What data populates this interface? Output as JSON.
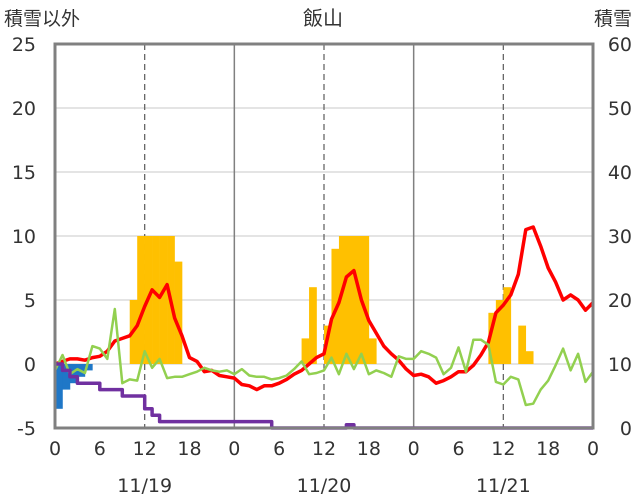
{
  "chart_data": {
    "type": "bar+line",
    "title": "飯山",
    "y_left_label": "積雪以外",
    "y_right_label": "積雪",
    "y_left_range": [
      -5,
      25
    ],
    "y_right_range": [
      0,
      60
    ],
    "y_left_ticks": [
      "25",
      "20",
      "15",
      "10",
      "5",
      "0",
      "-5"
    ],
    "y_right_ticks": [
      "60",
      "50",
      "40",
      "30",
      "20",
      "10",
      "0"
    ],
    "x_range_hours": [
      0,
      72
    ],
    "x_tick_labels": [
      "0",
      "6",
      "12",
      "18",
      "0",
      "6",
      "12",
      "18",
      "0",
      "6",
      "12",
      "18",
      "0"
    ],
    "date_labels": [
      "11/19",
      "11/20",
      "11/21"
    ],
    "grid": true,
    "series": [
      {
        "kind": "bar",
        "color": "#ffc000",
        "axis": "left",
        "points": [
          [
            10,
            5
          ],
          [
            11,
            10
          ],
          [
            12,
            10
          ],
          [
            13,
            10
          ],
          [
            14,
            10
          ],
          [
            15,
            10
          ],
          [
            16,
            8
          ],
          [
            33,
            2
          ],
          [
            34,
            6
          ],
          [
            36,
            3
          ],
          [
            37,
            9
          ],
          [
            38,
            10
          ],
          [
            39,
            10
          ],
          [
            40,
            10
          ],
          [
            41,
            10
          ],
          [
            42,
            2
          ],
          [
            58,
            4
          ],
          [
            59,
            5
          ],
          [
            60,
            6
          ],
          [
            62,
            3
          ],
          [
            63,
            1
          ]
        ]
      },
      {
        "kind": "bar",
        "color": "#1f77c7",
        "axis": "left",
        "points": [
          [
            0,
            -3.5
          ],
          [
            1,
            -2
          ],
          [
            2,
            -1.5
          ],
          [
            3,
            -1
          ],
          [
            4,
            -0.5
          ]
        ]
      },
      {
        "kind": "line",
        "color": "#ff0000",
        "axis": "left",
        "points": [
          [
            0,
            0
          ],
          [
            1,
            0.2
          ],
          [
            2,
            0.4
          ],
          [
            3,
            0.4
          ],
          [
            4,
            0.3
          ],
          [
            5,
            0.5
          ],
          [
            6,
            0.6
          ],
          [
            7,
            1
          ],
          [
            8,
            1.8
          ],
          [
            9,
            2
          ],
          [
            10,
            2.2
          ],
          [
            11,
            3
          ],
          [
            12,
            4.5
          ],
          [
            13,
            5.8
          ],
          [
            14,
            5.2
          ],
          [
            15,
            6.2
          ],
          [
            16,
            3.6
          ],
          [
            17,
            2.2
          ],
          [
            18,
            0.5
          ],
          [
            19,
            0.2
          ],
          [
            20,
            -0.6
          ],
          [
            21,
            -0.5
          ],
          [
            22,
            -0.9
          ],
          [
            23,
            -1
          ],
          [
            24,
            -1.1
          ],
          [
            25,
            -1.6
          ],
          [
            26,
            -1.7
          ],
          [
            27,
            -2
          ],
          [
            28,
            -1.7
          ],
          [
            29,
            -1.7
          ],
          [
            30,
            -1.5
          ],
          [
            31,
            -1.2
          ],
          [
            32,
            -0.8
          ],
          [
            33,
            -0.5
          ],
          [
            34,
            0
          ],
          [
            35,
            0.5
          ],
          [
            36,
            0.8
          ],
          [
            37,
            3.5
          ],
          [
            38,
            4.8
          ],
          [
            39,
            6.8
          ],
          [
            40,
            7.3
          ],
          [
            41,
            5
          ],
          [
            42,
            3.4
          ],
          [
            43,
            2.4
          ],
          [
            44,
            1.4
          ],
          [
            45,
            0.8
          ],
          [
            46,
            0.3
          ],
          [
            47,
            -0.4
          ],
          [
            48,
            -0.9
          ],
          [
            49,
            -0.8
          ],
          [
            50,
            -1
          ],
          [
            51,
            -1.5
          ],
          [
            52,
            -1.3
          ],
          [
            53,
            -1
          ],
          [
            54,
            -0.6
          ],
          [
            55,
            -0.6
          ],
          [
            56,
            -0.1
          ],
          [
            57,
            0.7
          ],
          [
            58,
            1.7
          ],
          [
            59,
            4
          ],
          [
            60,
            4.6
          ],
          [
            61,
            5.4
          ],
          [
            62,
            7
          ],
          [
            63,
            10.5
          ],
          [
            64,
            10.7
          ],
          [
            65,
            9.2
          ],
          [
            66,
            7.5
          ],
          [
            67,
            6.4
          ],
          [
            68,
            5
          ],
          [
            69,
            5.4
          ],
          [
            70,
            5
          ],
          [
            71,
            4.2
          ],
          [
            72,
            4.8
          ]
        ]
      },
      {
        "kind": "line",
        "color": "#92d050",
        "axis": "left",
        "points": [
          [
            0,
            -0.5
          ],
          [
            1,
            0.7
          ],
          [
            2,
            -0.8
          ],
          [
            3,
            -0.4
          ],
          [
            4,
            -0.7
          ],
          [
            5,
            1.4
          ],
          [
            6,
            1.2
          ],
          [
            7,
            0.4
          ],
          [
            8,
            4.3
          ],
          [
            9,
            -1.5
          ],
          [
            10,
            -1.2
          ],
          [
            11,
            -1.3
          ],
          [
            12,
            1
          ],
          [
            13,
            -0.3
          ],
          [
            14,
            0.4
          ],
          [
            15,
            -1.1
          ],
          [
            16,
            -1
          ],
          [
            17,
            -1
          ],
          [
            18,
            -0.8
          ],
          [
            19,
            -0.6
          ],
          [
            20,
            -0.3
          ],
          [
            21,
            -0.5
          ],
          [
            22,
            -0.6
          ],
          [
            23,
            -0.5
          ],
          [
            24,
            -0.8
          ],
          [
            25,
            -0.4
          ],
          [
            26,
            -0.9
          ],
          [
            27,
            -1
          ],
          [
            28,
            -1
          ],
          [
            29,
            -1.2
          ],
          [
            30,
            -1.1
          ],
          [
            31,
            -0.9
          ],
          [
            32,
            -0.4
          ],
          [
            33,
            0.2
          ],
          [
            34,
            -0.8
          ],
          [
            35,
            -0.7
          ],
          [
            36,
            -0.5
          ],
          [
            37,
            0.5
          ],
          [
            38,
            -0.8
          ],
          [
            39,
            0.8
          ],
          [
            40,
            -0.4
          ],
          [
            41,
            0.8
          ],
          [
            42,
            -0.8
          ],
          [
            43,
            -0.5
          ],
          [
            44,
            -0.7
          ],
          [
            45,
            -1
          ],
          [
            46,
            0.6
          ],
          [
            47,
            0.4
          ],
          [
            48,
            0.4
          ],
          [
            49,
            1
          ],
          [
            50,
            0.8
          ],
          [
            51,
            0.5
          ],
          [
            52,
            -0.8
          ],
          [
            53,
            -0.3
          ],
          [
            54,
            1.3
          ],
          [
            55,
            -0.6
          ],
          [
            56,
            1.9
          ],
          [
            57,
            1.9
          ],
          [
            58,
            1.5
          ],
          [
            59,
            -1.4
          ],
          [
            60,
            -1.6
          ],
          [
            61,
            -1
          ],
          [
            62,
            -1.2
          ],
          [
            63,
            -3.2
          ],
          [
            64,
            -3.1
          ],
          [
            65,
            -2
          ],
          [
            66,
            -1.3
          ],
          [
            67,
            -0.1
          ],
          [
            68,
            1.2
          ],
          [
            69,
            -0.5
          ],
          [
            70,
            0.8
          ],
          [
            71,
            -1.4
          ],
          [
            72,
            -0.6
          ]
        ]
      },
      {
        "kind": "step",
        "color": "#7030a0",
        "axis": "right",
        "points": [
          [
            0,
            10
          ],
          [
            1,
            9
          ],
          [
            2,
            8
          ],
          [
            3,
            7
          ],
          [
            5,
            7
          ],
          [
            6,
            6
          ],
          [
            8,
            6
          ],
          [
            9,
            5
          ],
          [
            11,
            5
          ],
          [
            12,
            3
          ],
          [
            13,
            2
          ],
          [
            14,
            1
          ],
          [
            18,
            1
          ],
          [
            24,
            1
          ],
          [
            28,
            1
          ],
          [
            29,
            0
          ],
          [
            38,
            0
          ],
          [
            39,
            0.5
          ],
          [
            40,
            0
          ],
          [
            72,
            0
          ]
        ]
      }
    ]
  }
}
